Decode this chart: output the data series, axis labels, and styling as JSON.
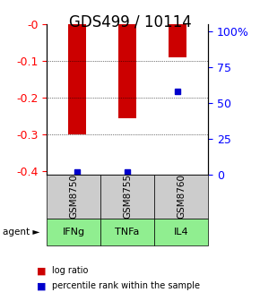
{
  "title": "GDS499 / 10114",
  "samples": [
    "GSM8750",
    "GSM8755",
    "GSM8760"
  ],
  "agents": [
    "IFNg",
    "TNFa",
    "IL4"
  ],
  "log_ratios": [
    -0.301,
    -0.256,
    -0.09
  ],
  "percentile_ranks": [
    0.02,
    0.02,
    0.55
  ],
  "ylim_left": [
    -0.41,
    0.0
  ],
  "bar_color": "#cc0000",
  "percentile_color": "#0000cc",
  "sample_box_color": "#cccccc",
  "agent_colors": [
    "#90ee90",
    "#90ee90",
    "#90ee90"
  ],
  "bar_width": 0.35,
  "title_fontsize": 12,
  "tick_fontsize": 9
}
